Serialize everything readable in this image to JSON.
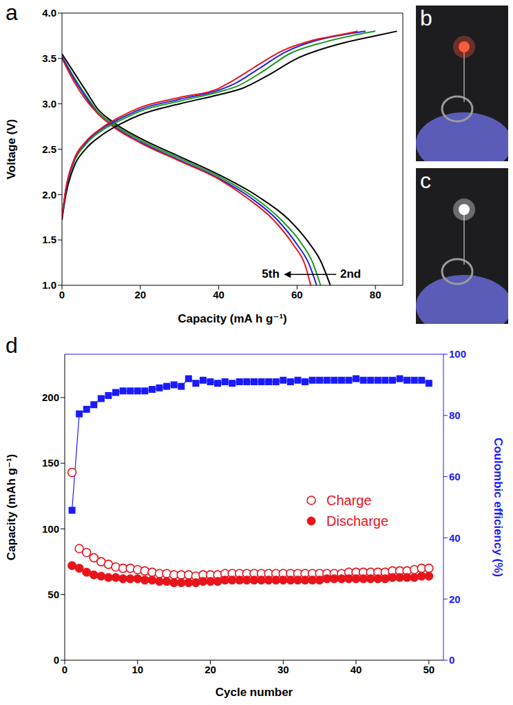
{
  "chart_data": [
    {
      "panel": "a",
      "type": "line",
      "x_label": "Capacity (mA h g⁻¹)",
      "y_label": "Voltage (V)",
      "xlim": [
        0,
        87
      ],
      "xticks": [
        0,
        20,
        40,
        60,
        80
      ],
      "ylim": [
        1,
        4
      ],
      "yticks": [
        {
          "value": 1,
          "label": "1.0"
        },
        {
          "value": 1.5,
          "label": "1.5"
        },
        {
          "value": 2,
          "label": "2.0"
        },
        {
          "value": 2.5,
          "label": "2.5"
        },
        {
          "value": 3,
          "label": "3.0"
        },
        {
          "value": 3.5,
          "label": "3.5"
        },
        {
          "value": 4,
          "label": "4.0"
        }
      ],
      "grid": false,
      "annotations": [
        "5th",
        "2nd"
      ],
      "series": [
        {
          "color": "#000000",
          "x": [
            0,
            3,
            6,
            9,
            13,
            20,
            30,
            40,
            50,
            58,
            63,
            66,
            68.5
          ],
          "values": [
            3.55,
            3.35,
            3.15,
            2.95,
            2.8,
            2.62,
            2.42,
            2.22,
            1.98,
            1.72,
            1.47,
            1.27,
            1.0
          ]
        },
        {
          "color": "#1a9a1a",
          "x": [
            0,
            3,
            6,
            9,
            13,
            20,
            30,
            40,
            49,
            56,
            61,
            64,
            66
          ],
          "values": [
            3.52,
            3.3,
            3.1,
            2.92,
            2.78,
            2.6,
            2.4,
            2.2,
            1.97,
            1.72,
            1.47,
            1.25,
            1.0
          ]
        },
        {
          "color": "#2020e0",
          "x": [
            0,
            3,
            6,
            9,
            13,
            20,
            30,
            40,
            48,
            55,
            60,
            63,
            65
          ],
          "values": [
            3.52,
            3.28,
            3.08,
            2.9,
            2.76,
            2.58,
            2.38,
            2.18,
            1.97,
            1.72,
            1.45,
            1.24,
            1.0
          ]
        },
        {
          "color": "#e8141c",
          "x": [
            0,
            3,
            6,
            9,
            13,
            20,
            30,
            40,
            47,
            54,
            59,
            62,
            63.5
          ],
          "values": [
            3.5,
            3.25,
            3.05,
            2.9,
            2.75,
            2.57,
            2.37,
            2.17,
            1.97,
            1.72,
            1.45,
            1.23,
            1.0
          ]
        },
        {
          "color": "#000000",
          "x": [
            0,
            1,
            3,
            6,
            10,
            15,
            20,
            30,
            40,
            46,
            52,
            60,
            70,
            80,
            85.5
          ],
          "values": [
            1.72,
            2.0,
            2.3,
            2.5,
            2.65,
            2.78,
            2.88,
            3.0,
            3.1,
            3.17,
            3.3,
            3.5,
            3.65,
            3.75,
            3.8
          ]
        },
        {
          "color": "#1a9a1a",
          "x": [
            0,
            1,
            3,
            6,
            10,
            15,
            20,
            30,
            40,
            45,
            51,
            58,
            67,
            75,
            80
          ],
          "values": [
            1.75,
            2.05,
            2.35,
            2.55,
            2.7,
            2.82,
            2.92,
            3.03,
            3.13,
            3.2,
            3.35,
            3.55,
            3.68,
            3.76,
            3.8
          ]
        },
        {
          "color": "#2020e0",
          "x": [
            0,
            1,
            3,
            6,
            10,
            15,
            20,
            30,
            40,
            44,
            50,
            57,
            65,
            73,
            77.5
          ],
          "values": [
            1.75,
            2.05,
            2.37,
            2.57,
            2.72,
            2.84,
            2.94,
            3.05,
            3.15,
            3.22,
            3.38,
            3.57,
            3.7,
            3.77,
            3.8
          ]
        },
        {
          "color": "#e8141c",
          "x": [
            0,
            1,
            3,
            6,
            10,
            15,
            20,
            30,
            40,
            43,
            49,
            56,
            64,
            71,
            75.5
          ],
          "values": [
            1.75,
            2.07,
            2.38,
            2.58,
            2.73,
            2.86,
            2.96,
            3.07,
            3.17,
            3.24,
            3.4,
            3.58,
            3.7,
            3.76,
            3.8
          ]
        }
      ]
    },
    {
      "panel": "d",
      "type": "scatter",
      "x_label": "Cycle number",
      "y_label": "Capacity (mAh g⁻¹)",
      "y2_label": "Coulombic efficiency (%)",
      "xlim": [
        0,
        52
      ],
      "xticks": [
        0,
        10,
        20,
        30,
        40,
        50
      ],
      "ylim": [
        0,
        233
      ],
      "yticks": [
        0,
        50,
        100,
        150,
        200
      ],
      "y2lim": [
        0,
        100
      ],
      "y2ticks": [
        0,
        20,
        40,
        60,
        80,
        100
      ],
      "grid": false,
      "legend": "right",
      "x": [
        1,
        2,
        3,
        4,
        5,
        6,
        7,
        8,
        9,
        10,
        11,
        12,
        13,
        14,
        15,
        16,
        17,
        18,
        19,
        20,
        21,
        22,
        23,
        24,
        25,
        26,
        27,
        28,
        29,
        30,
        31,
        32,
        33,
        34,
        35,
        36,
        37,
        38,
        39,
        40,
        41,
        42,
        43,
        44,
        45,
        46,
        47,
        48,
        49,
        50
      ],
      "series": [
        {
          "name": "Charge",
          "color": "#e8141c",
          "marker": "circle_open",
          "line_style": "none",
          "values": [
            143,
            85,
            82,
            78,
            75,
            73,
            71,
            70,
            70,
            69,
            68,
            67,
            66,
            66,
            65,
            65,
            65,
            64,
            65,
            65,
            65,
            66,
            66,
            66,
            66,
            66,
            66,
            66,
            66,
            66,
            66,
            66,
            66,
            66,
            66,
            66,
            66,
            66,
            67,
            67,
            67,
            67,
            67,
            67,
            68,
            68,
            68,
            69,
            70,
            70
          ]
        },
        {
          "name": "Discharge",
          "color": "#e8141c",
          "marker": "circle",
          "line_style": "none",
          "values": [
            72,
            70,
            67,
            65,
            64,
            63,
            63,
            62,
            62,
            62,
            61,
            61,
            60,
            60,
            59,
            59,
            59,
            59,
            60,
            60,
            60,
            61,
            61,
            61,
            61,
            61,
            61,
            61,
            61,
            61,
            61,
            61,
            61,
            61,
            61,
            62,
            62,
            62,
            62,
            62,
            62,
            62,
            62,
            62,
            63,
            63,
            63,
            63,
            64,
            64
          ]
        },
        {
          "type": "line",
          "axis": "y2",
          "color": "#1a1aff",
          "marker": "square",
          "line_style": "solid",
          "values": [
            49,
            80.5,
            82,
            83.5,
            85.5,
            86.5,
            87.5,
            88,
            88,
            88,
            88,
            88.5,
            89,
            89.5,
            90,
            89.5,
            92,
            90.5,
            91.5,
            91,
            90.5,
            91,
            90.5,
            91,
            91,
            91,
            91,
            91,
            91,
            91.5,
            91,
            91.5,
            91,
            91.5,
            91.5,
            91.5,
            91.5,
            91.5,
            91.5,
            92,
            91.5,
            91.5,
            91.5,
            91.5,
            91.5,
            92,
            91.5,
            91.5,
            91.5,
            90.5
          ]
        }
      ]
    }
  ],
  "photos": [
    {
      "panel": "b"
    },
    {
      "panel": "c"
    }
  ]
}
